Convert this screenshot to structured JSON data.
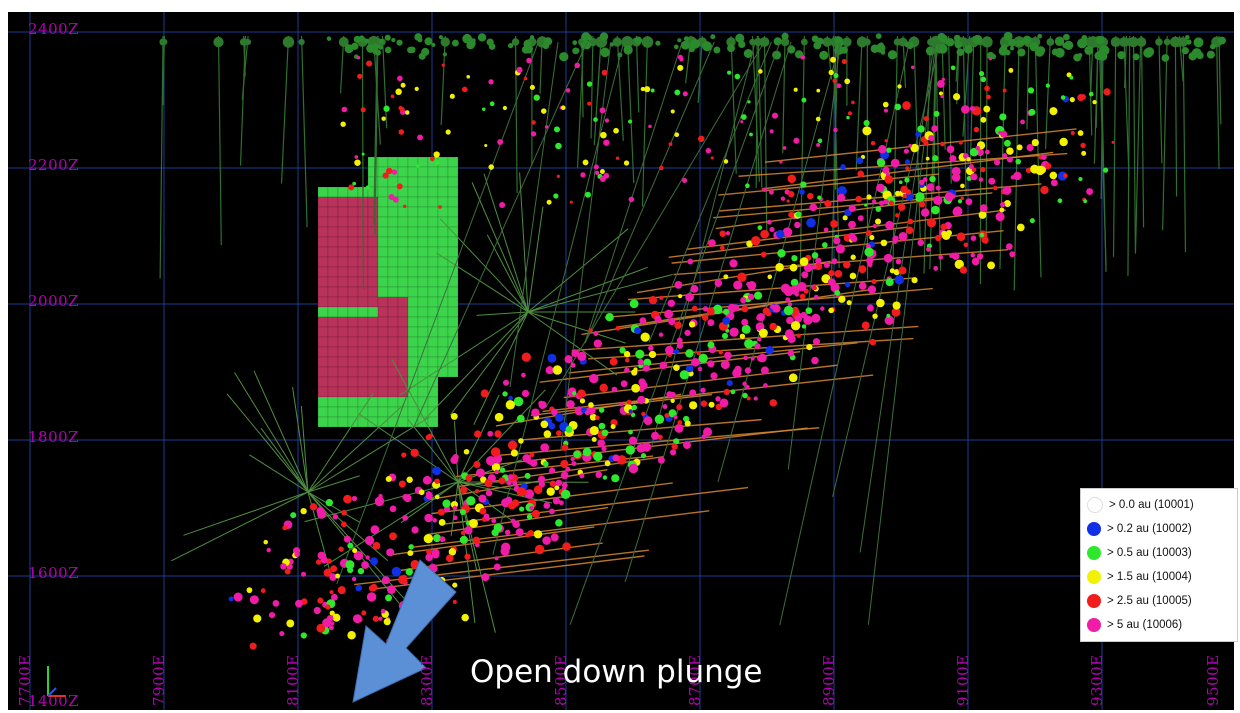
{
  "section": {
    "elevation_labels": [
      "2400Z",
      "2200Z",
      "2000Z",
      "1800Z",
      "1600Z",
      "1400Z"
    ],
    "easting_labels": [
      "7700E",
      "7900E",
      "8100E",
      "8300E",
      "8500E",
      "8700E",
      "8900E",
      "9100E",
      "9300E",
      "9500E"
    ],
    "annotation": "Open down plunge",
    "colors": {
      "background": "#000000",
      "grid": "#1a3c96",
      "axis_label": "#b400b4",
      "drillhole": "#2f6e2f",
      "block_red": "#b8325a",
      "block_green": "#3bd44b",
      "arrow": "#5b8fd6",
      "stope_line": "#d7872e"
    },
    "icons": [
      "axis-triad-icon",
      "down-plunge-arrow-icon"
    ]
  },
  "legend": {
    "items": [
      {
        "label": "> 0.0 au (10001)",
        "color": "#ffffff"
      },
      {
        "label": "> 0.2 au (10002)",
        "color": "#1030e8"
      },
      {
        "label": "> 0.5 au (10003)",
        "color": "#2de82d"
      },
      {
        "label": "> 1.5 au (10004)",
        "color": "#f2f200"
      },
      {
        "label": "> 2.5 au (10005)",
        "color": "#f21c1c"
      },
      {
        "label": "> 5 au (10006)",
        "color": "#f01ba6"
      }
    ]
  }
}
